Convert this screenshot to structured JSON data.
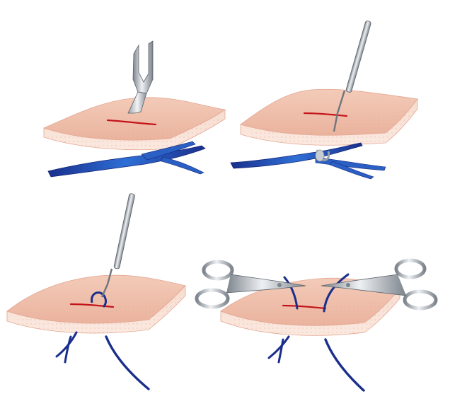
{
  "figure": {
    "panel_count": 4,
    "steps": [
      {
        "step": 1,
        "instrument": "scalpel-icon",
        "action": "incision"
      },
      {
        "step": 2,
        "instrument": "hook-probe-icon",
        "action": "vein-hooked"
      },
      {
        "step": 3,
        "instrument": "hook-probe-icon",
        "action": "vein-extracted"
      },
      {
        "step": 4,
        "instrument": "scissors-icon",
        "action": "vein-divided"
      }
    ],
    "colors": {
      "skin_top": "#f0c1ad",
      "skin_bottom": "#f6d6c8",
      "skin_edge": "#d99a86",
      "incision": "#c4141b",
      "vein_dark": "#1a2f8c",
      "vein_light": "#2e6fd6",
      "steel": "#b9bfc6",
      "steel_dark": "#5b6168"
    }
  }
}
